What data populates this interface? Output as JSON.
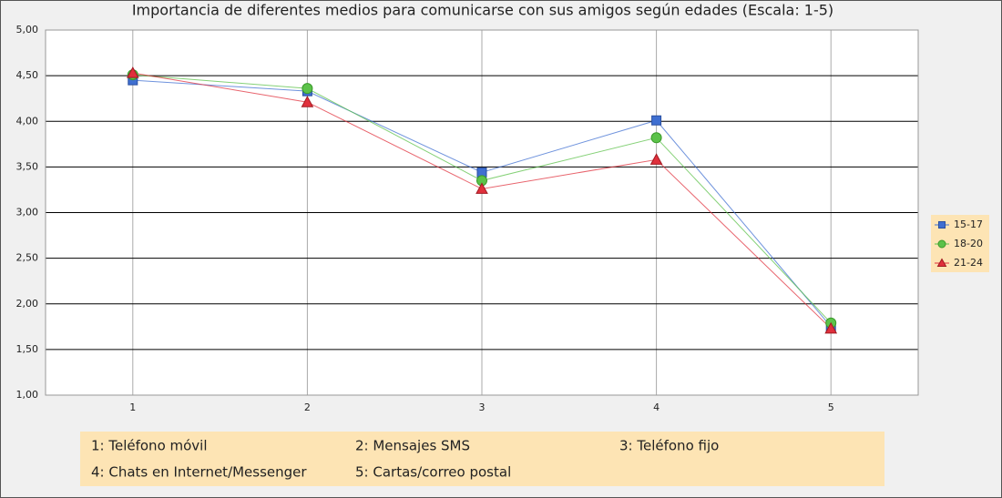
{
  "chart_data": {
    "type": "line",
    "title": "Importancia de diferentes medios para comunicarse con sus amigos según edades (Escala: 1-5)",
    "categories": [
      "1",
      "2",
      "3",
      "4",
      "5"
    ],
    "series": [
      {
        "name": "15-17",
        "color": "#3f6fd1",
        "marker": "square",
        "values": [
          4.45,
          4.33,
          3.44,
          4.01,
          1.75
        ]
      },
      {
        "name": "18-20",
        "color": "#5cc24a",
        "marker": "circle",
        "values": [
          4.51,
          4.36,
          3.35,
          3.82,
          1.79
        ]
      },
      {
        "name": "21-24",
        "color": "#e0303c",
        "marker": "triangle",
        "values": [
          4.53,
          4.21,
          3.26,
          3.58,
          1.73
        ]
      }
    ],
    "ylim": [
      1,
      5
    ],
    "yticks": [
      {
        "value": 1,
        "label": "1,00"
      },
      {
        "value": 1.5,
        "label": "1,50"
      },
      {
        "value": 2,
        "label": "2,00"
      },
      {
        "value": 2.5,
        "label": "2,50"
      },
      {
        "value": 3,
        "label": "3,00"
      },
      {
        "value": 3.5,
        "label": "3,50"
      },
      {
        "value": 4,
        "label": "4,00"
      },
      {
        "value": 4.5,
        "label": "4,50"
      },
      {
        "value": 5,
        "label": "5,00"
      }
    ],
    "grid": true,
    "legend_position": "right",
    "category_key": [
      "1:  Teléfono móvil",
      "2:  Mensajes SMS",
      "3:  Teléfono fijo",
      "4:  Chats en Internet/Messenger",
      "5:  Cartas/correo postal"
    ]
  }
}
